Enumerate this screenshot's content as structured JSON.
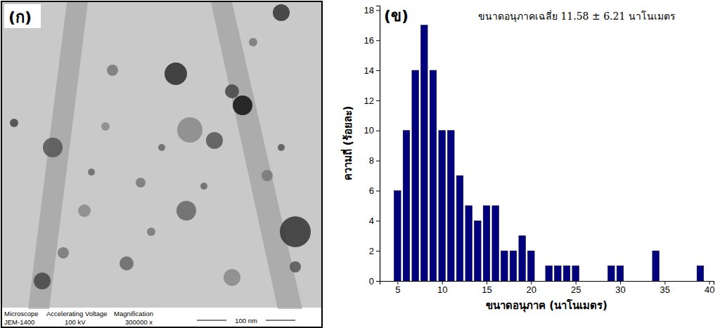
{
  "micrograph": {
    "label": "(ก)",
    "info_header": [
      "Microscope",
      "Accelerating Voltage",
      "Magnification"
    ],
    "info_values": [
      "JEM-1400",
      "100 kV",
      "300000 x"
    ],
    "scale_bar": "100 nm"
  },
  "chart_data": {
    "type": "bar",
    "label": "(ข)",
    "annotation": "ขนาดอนุภาคเฉลี่ย 11.58 ± 6.21 นาโนเมตร",
    "xlabel": "ขนาดอนุภาค (นาโนเมตร)",
    "ylabel": "ความถี่ (ร้อยละ)",
    "x": [
      5,
      6,
      7,
      8,
      9,
      10,
      11,
      12,
      13,
      14,
      15,
      16,
      17,
      18,
      19,
      20,
      21,
      22,
      23,
      24,
      25,
      26,
      27,
      28,
      29,
      30,
      31,
      32,
      33,
      34,
      35,
      36,
      37,
      38,
      39
    ],
    "values": [
      6,
      10,
      14,
      17,
      14,
      10,
      10,
      7,
      5,
      4,
      5,
      5,
      2,
      2,
      3,
      2,
      0,
      1,
      1,
      1,
      1,
      0,
      0,
      0,
      1,
      1,
      0,
      0,
      0,
      2,
      0,
      0,
      0,
      0,
      1
    ],
    "color": "#00007f",
    "xlim": [
      3,
      40.5
    ],
    "xticks": [
      5,
      10,
      15,
      20,
      25,
      30,
      35,
      40
    ],
    "ylim": [
      0,
      18.3
    ],
    "yticks": [
      0,
      2,
      4,
      6,
      8,
      10,
      12,
      14,
      16,
      18
    ],
    "grid": false
  }
}
